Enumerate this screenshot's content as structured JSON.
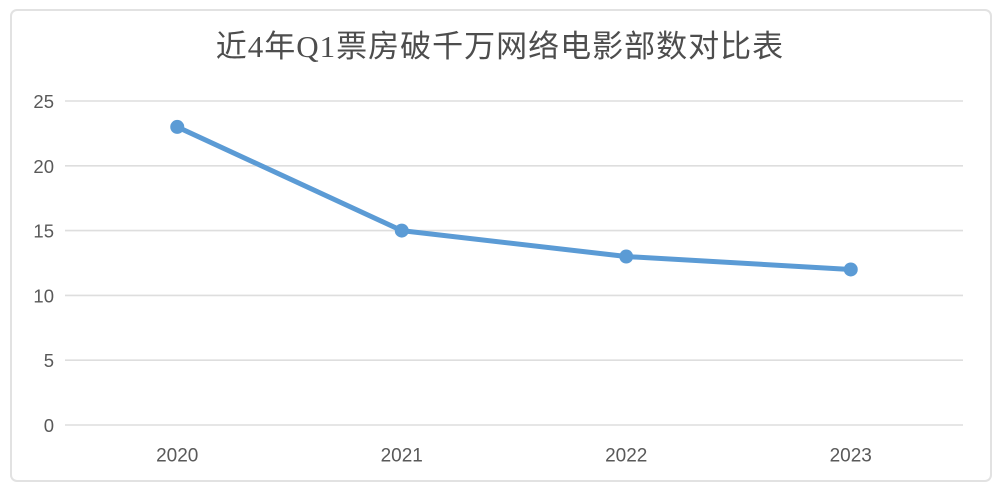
{
  "chart_data": {
    "type": "line",
    "title": "近4年Q1票房破千万网络电影部数对比表",
    "categories": [
      "2020",
      "2021",
      "2022",
      "2023"
    ],
    "values": [
      23,
      15,
      13,
      12
    ],
    "xlabel": "",
    "ylabel": "",
    "ylim": [
      0,
      25
    ],
    "yticks": [
      0,
      5,
      10,
      15,
      20,
      25
    ],
    "grid": true,
    "legend_position": "none",
    "marker": "circle",
    "colors": {
      "line": "#5b9bd5",
      "marker": "#5b9bd5",
      "gridline": "#dedede",
      "tick_label": "#595959",
      "title_text": "#4d4d4d",
      "card_border": "#e2e2e2",
      "background": "#ffffff"
    }
  }
}
